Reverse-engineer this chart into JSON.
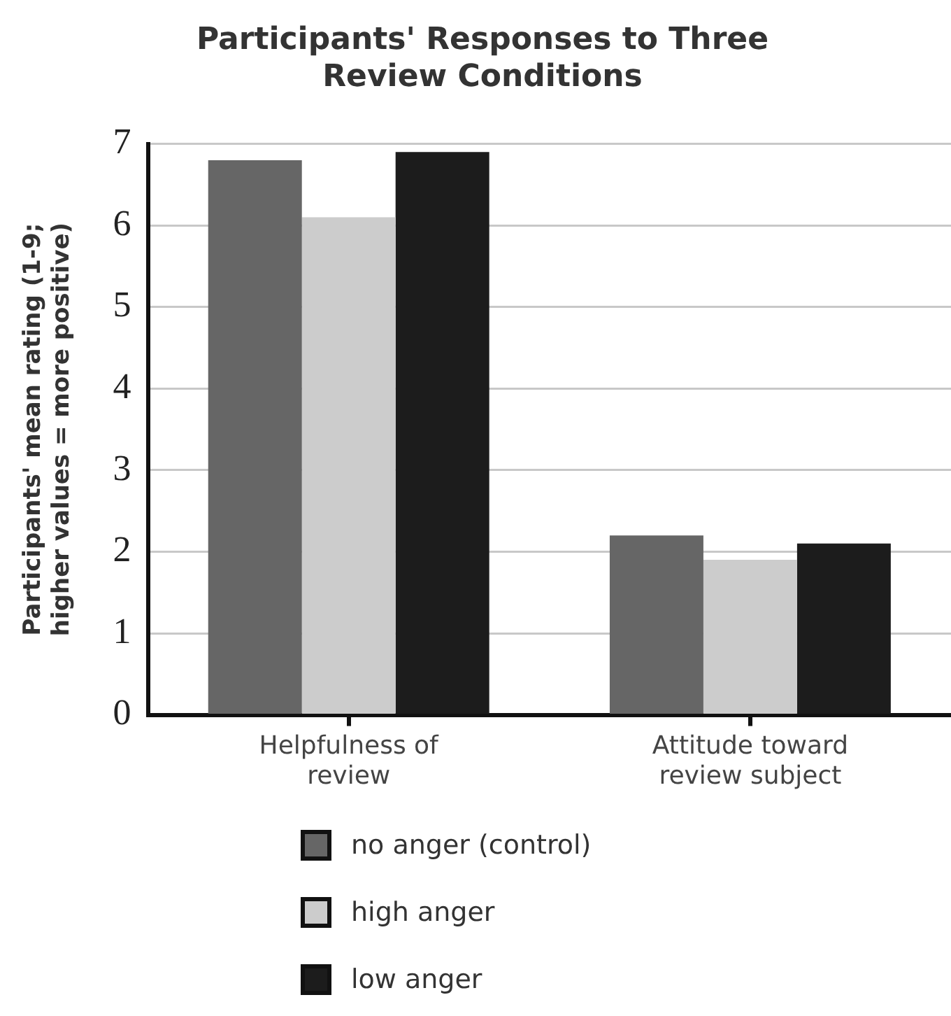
{
  "chart_data": {
    "type": "bar",
    "title": "Participants' Responses to Three Review Conditions",
    "ylabel": "Participants' mean rating (1-9; higher values = more positive)",
    "categories": [
      "Helpfulness of review",
      "Attitude toward review subject"
    ],
    "series": [
      {
        "name": "no anger (control)",
        "color": "#666666",
        "values": [
          6.8,
          2.2
        ]
      },
      {
        "name": "high anger",
        "color": "#cccccc",
        "values": [
          6.1,
          1.9
        ]
      },
      {
        "name": "low anger",
        "color": "#1c1c1c",
        "values": [
          6.9,
          2.1
        ]
      }
    ],
    "ylim": [
      0,
      7
    ],
    "yticks": [
      0,
      1,
      2,
      3,
      4,
      5,
      6,
      7
    ],
    "grid": "y",
    "legend": "bottom"
  }
}
